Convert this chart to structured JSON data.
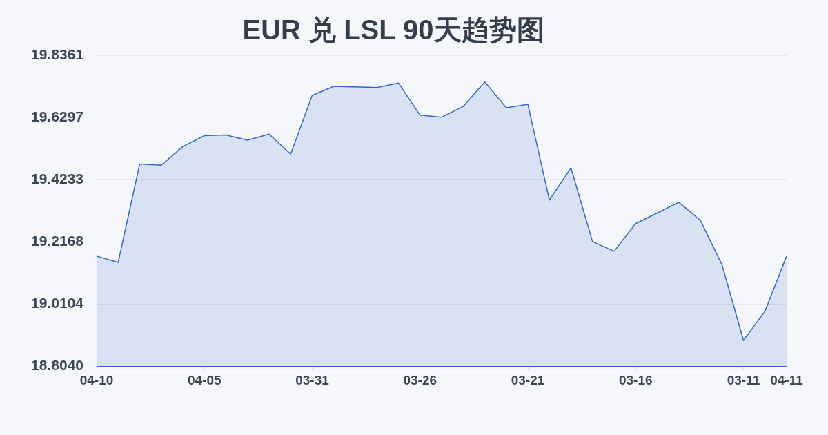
{
  "chart_data": {
    "type": "area",
    "title": "EUR 兑 LSL 90天趋势图",
    "categories": [
      "04-10",
      null,
      null,
      null,
      null,
      "04-05",
      null,
      null,
      null,
      null,
      "03-31",
      null,
      null,
      null,
      null,
      "03-26",
      null,
      null,
      null,
      null,
      "03-21",
      null,
      null,
      null,
      null,
      "03-16",
      null,
      null,
      null,
      null,
      "03-11",
      null,
      "04-11"
    ],
    "values": [
      19.169,
      19.148,
      19.475,
      19.471,
      19.533,
      19.569,
      19.571,
      19.554,
      19.574,
      19.508,
      19.703,
      19.733,
      19.731,
      19.729,
      19.744,
      19.637,
      19.63,
      19.666,
      19.748,
      19.662,
      19.673,
      19.355,
      19.462,
      19.217,
      19.185,
      19.277,
      19.312,
      19.348,
      19.288,
      19.141,
      18.889,
      18.986,
      19.169
    ],
    "color": "#3366cc",
    "ylim": [
      18.804,
      19.8361
    ],
    "yticks": [
      {
        "value": 18.804,
        "label": "18.8040"
      },
      19.0104,
      19.2168,
      19.4233,
      19.6297,
      19.8361
    ],
    "grid": "y",
    "marker": "none"
  }
}
